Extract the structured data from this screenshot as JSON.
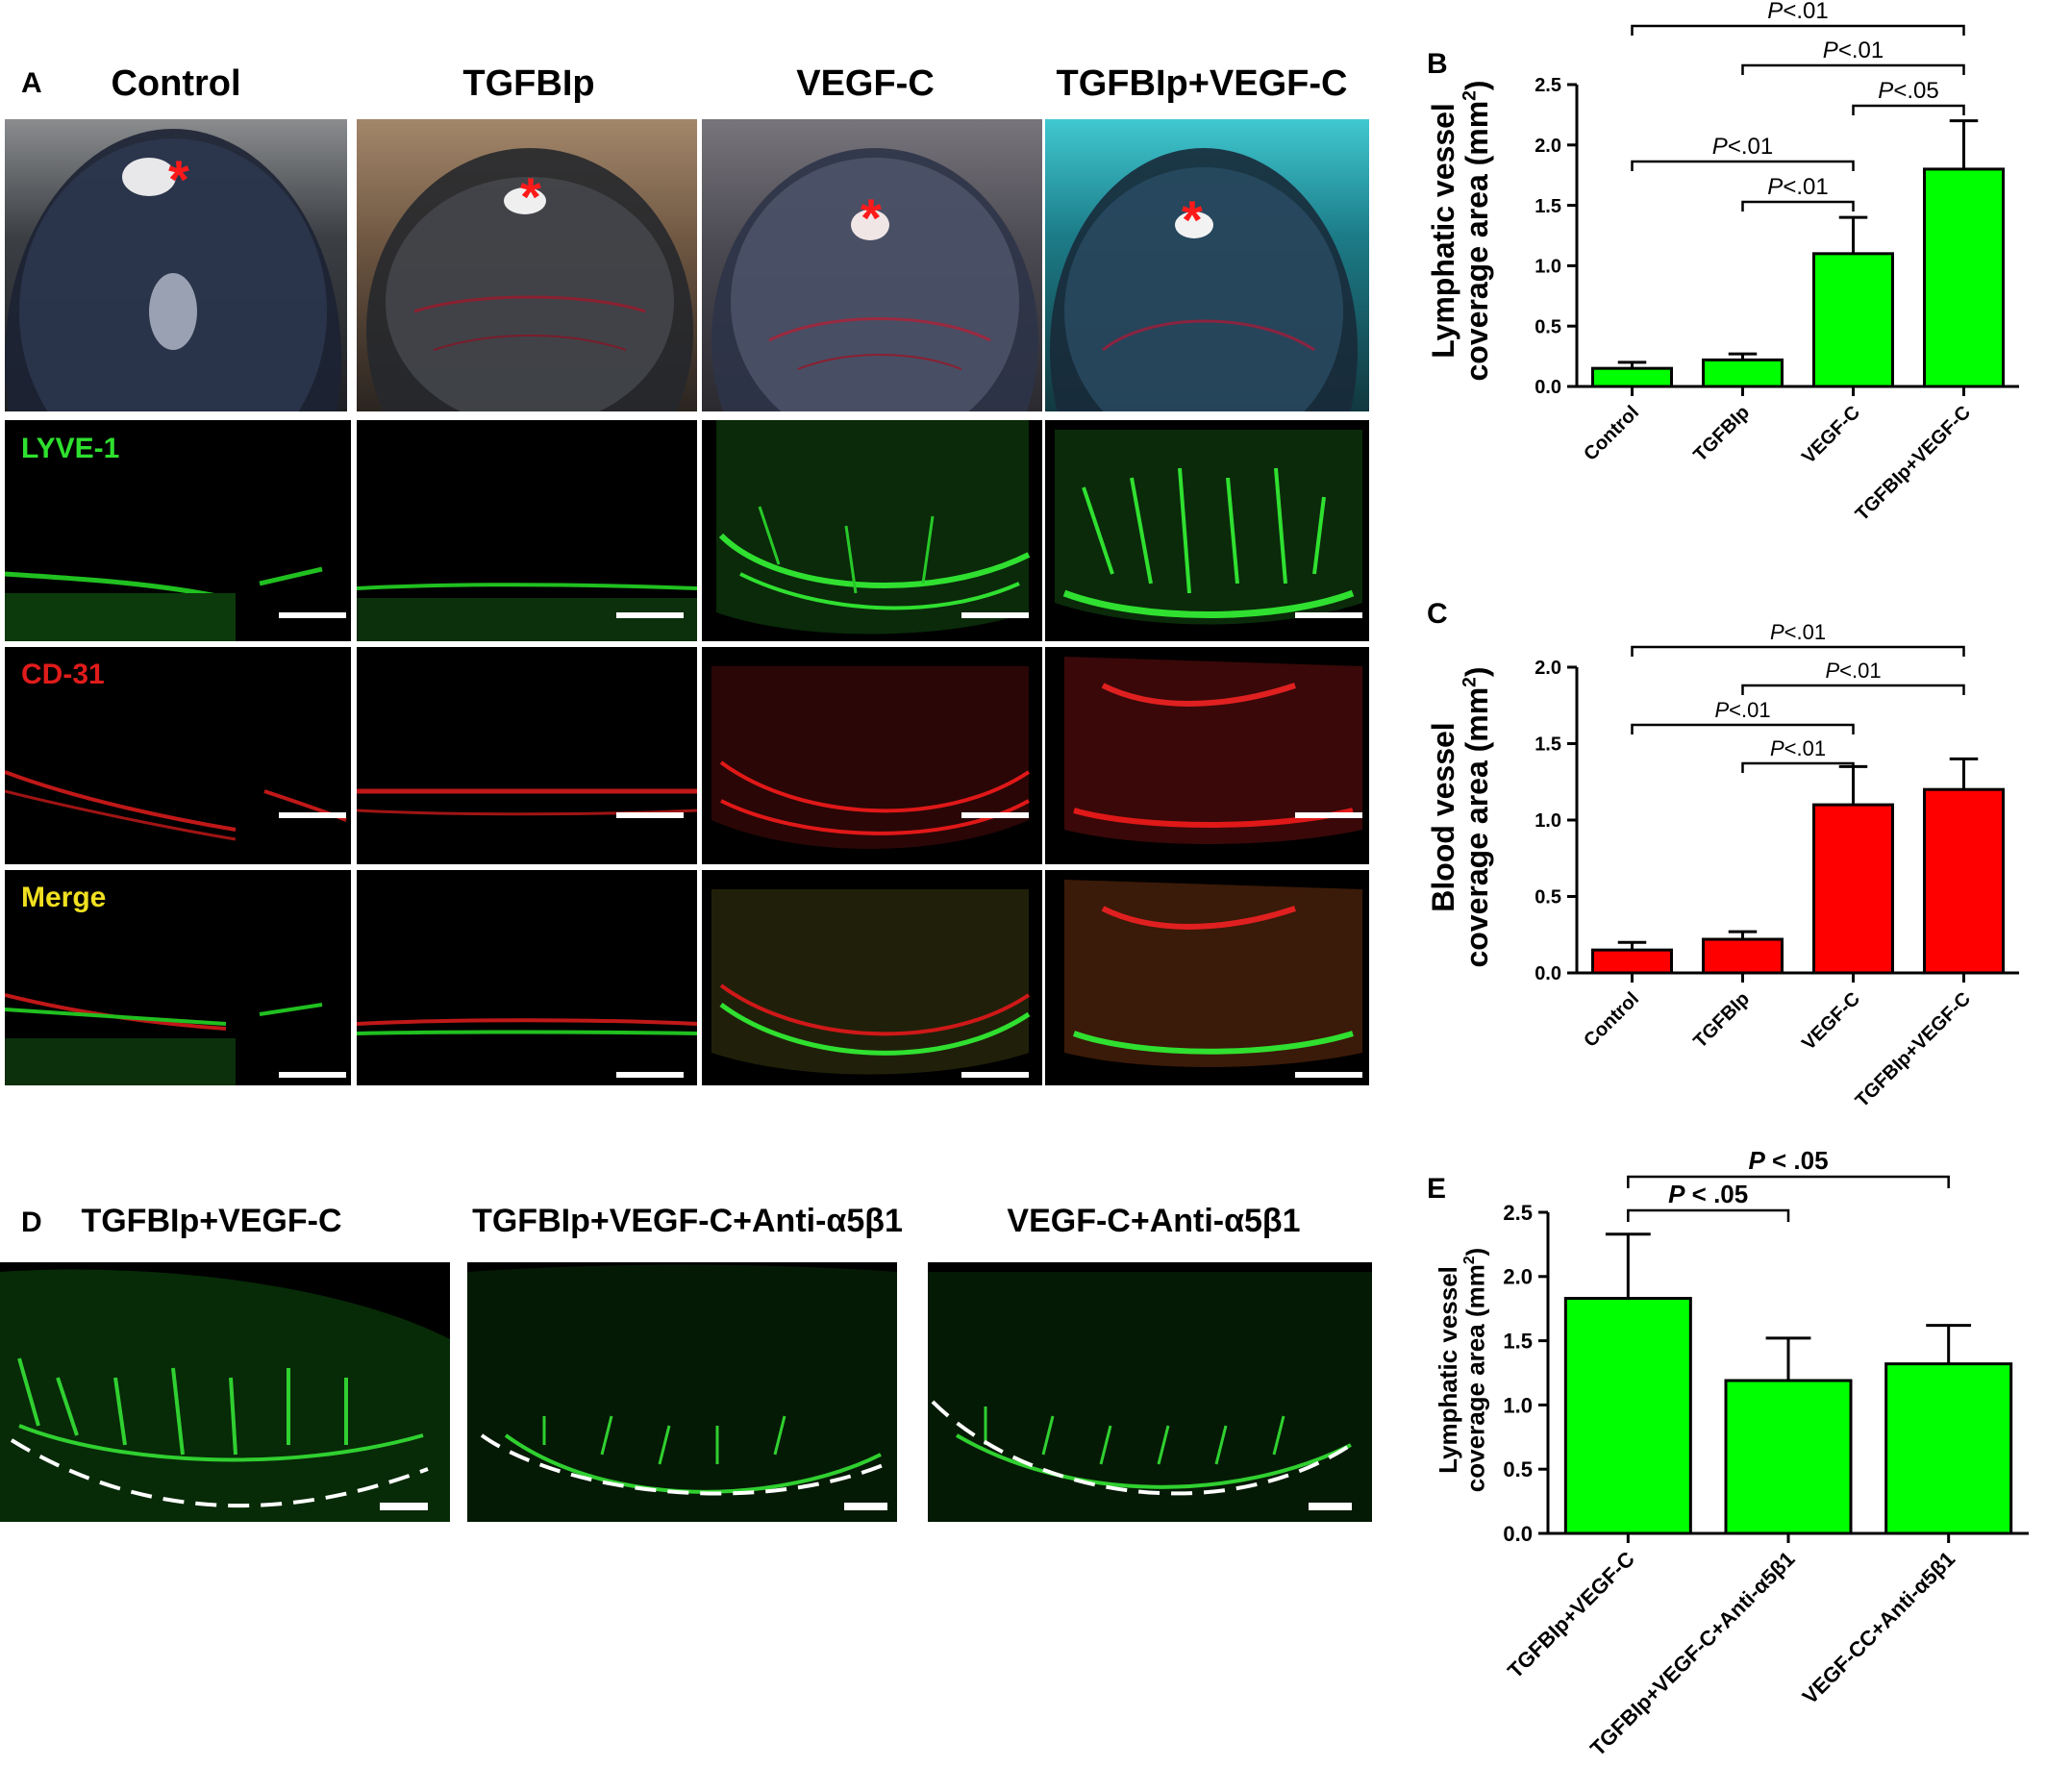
{
  "panels": {
    "A": "A",
    "B": "B",
    "C": "C",
    "D": "D",
    "E": "E"
  },
  "panel_a": {
    "columns": [
      "Control",
      "TGFBIp",
      "VEGF-C",
      "TGFBIp+VEGF-C"
    ],
    "row_labels": [
      "LYVE-1",
      "CD-31",
      "Merge"
    ],
    "row_label_colors": [
      "#2ee02e",
      "#e01b1b",
      "#f0e020"
    ],
    "star_glyph": "*",
    "star_color": "#ff1a1a"
  },
  "panel_d": {
    "titles": [
      "TGFBIp+VEGF-C",
      "TGFBIp+VEGF-C+Anti-α5β1",
      "VEGF-C+Anti-α5β1"
    ]
  },
  "colors": {
    "lymph_green": "#00ff00",
    "blood_red": "#ff0000",
    "micro_green": "#20d020",
    "micro_red": "#e01818"
  },
  "chart_data": [
    {
      "id": "B",
      "type": "bar",
      "categories": [
        "Control",
        "TGFBIp",
        "VEGF-C",
        "TGFBIp+VEGF-C"
      ],
      "values": [
        0.15,
        0.22,
        1.1,
        1.8
      ],
      "errors": [
        0.05,
        0.05,
        0.3,
        0.4
      ],
      "ylabel_line1": "Lymphatic vessel",
      "ylabel_line2": "coverage area (mm",
      "ylabel_sup": "2",
      "ylabel_close": ")",
      "ylim": [
        0,
        2.5
      ],
      "yticks": [
        "0.0",
        "0.5",
        "1.0",
        "1.5",
        "2.0",
        "2.5"
      ],
      "color": "#00ff00",
      "significance": [
        {
          "text": "P<.01",
          "from": 0,
          "to": 3
        },
        {
          "text": "P<.01",
          "from": 1,
          "to": 3
        },
        {
          "text": "P<.05",
          "from": 2,
          "to": 3
        },
        {
          "text": "P<.01",
          "from": 0,
          "to": 2
        },
        {
          "text": "P<.01",
          "from": 1,
          "to": 2
        }
      ]
    },
    {
      "id": "C",
      "type": "bar",
      "categories": [
        "Control",
        "TGFBIp",
        "VEGF-C",
        "TGFBIp+VEGF-C"
      ],
      "values": [
        0.15,
        0.22,
        1.1,
        1.2
      ],
      "errors": [
        0.05,
        0.05,
        0.25,
        0.2
      ],
      "ylabel_line1": "Blood vessel",
      "ylabel_line2": "coverage area (mm",
      "ylabel_sup": "2",
      "ylabel_close": ")",
      "ylim": [
        0,
        2.0
      ],
      "yticks": [
        "0.0",
        "0.5",
        "1.0",
        "1.5",
        "2.0"
      ],
      "color": "#ff0000",
      "significance": [
        {
          "text": "P<.01",
          "from": 0,
          "to": 3
        },
        {
          "text": "P<.01",
          "from": 1,
          "to": 3
        },
        {
          "text": "P<.01",
          "from": 0,
          "to": 2
        },
        {
          "text": "P<.01",
          "from": 1,
          "to": 2
        }
      ]
    },
    {
      "id": "E",
      "type": "bar",
      "categories": [
        "TGFBIp+VEGF-C",
        "TGFBIp+VEGF-C+Anti-α5β1",
        "VEGF-CC+Anti-α5β1"
      ],
      "values": [
        1.83,
        1.19,
        1.32
      ],
      "errors": [
        0.5,
        0.33,
        0.3
      ],
      "ylabel_line1": "Lymphatic vessel",
      "ylabel_line2": "coverage area (mm",
      "ylabel_sup": "2",
      "ylabel_close": ")",
      "ylim": [
        0,
        2.5
      ],
      "yticks": [
        "0.0",
        "0.5",
        "1.0",
        "1.5",
        "2.0",
        "2.5"
      ],
      "color": "#00ff00",
      "significance": [
        {
          "text": "P < .05",
          "from": 0,
          "to": 2
        },
        {
          "text": "P < .05",
          "from": 0,
          "to": 1
        }
      ]
    }
  ]
}
